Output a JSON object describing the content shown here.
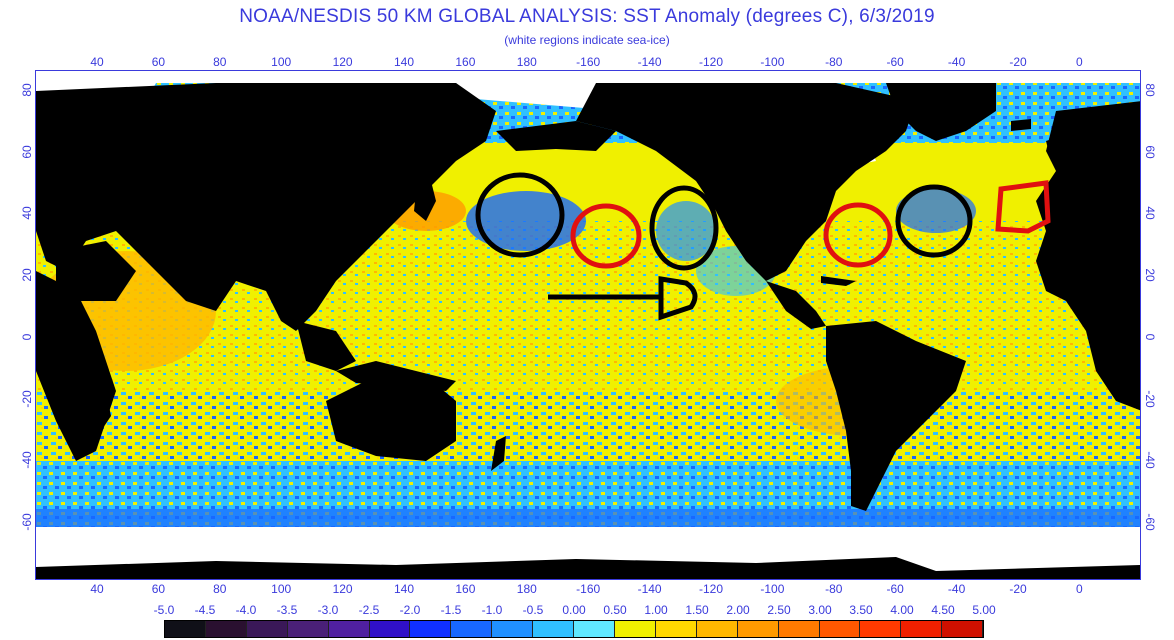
{
  "header": {
    "title": "NOAA/NESDIS 50 KM GLOBAL ANALYSIS: SST Anomaly (degrees C), 6/3/2019",
    "subtitle": "(white regions indicate sea-ice)"
  },
  "axes": {
    "lon_labels": [
      "40",
      "60",
      "80",
      "100",
      "120",
      "140",
      "160",
      "180",
      "-160",
      "-140",
      "-120",
      "-100",
      "-80",
      "-60",
      "-40",
      "-20",
      "0"
    ],
    "lat_labels": [
      "80",
      "60",
      "40",
      "20",
      "0",
      "-20",
      "-40",
      "-60"
    ]
  },
  "colorbar": {
    "labels": [
      "-5.0",
      "-4.5",
      "-4.0",
      "-3.5",
      "-3.0",
      "-2.5",
      "-2.0",
      "-1.5",
      "-1.0",
      "-0.5",
      "0.00",
      "0.50",
      "1.00",
      "1.50",
      "2.00",
      "2.50",
      "3.00",
      "3.50",
      "4.00",
      "4.50",
      "5.00"
    ],
    "colors": [
      "#101018",
      "#2a1030",
      "#3a1858",
      "#4a2078",
      "#5020a0",
      "#3010c8",
      "#1030ff",
      "#1868ff",
      "#2090ff",
      "#30c0ff",
      "#60e8ff",
      "#f0f000",
      "#ffd800",
      "#ffb800",
      "#ff9a00",
      "#ff7a00",
      "#ff5800",
      "#ff3a00",
      "#f02000",
      "#d01000"
    ]
  },
  "map": {
    "colors": {
      "land": "#000000",
      "ice": "#ffffff",
      "warm": "#ffd800",
      "neutral": "#f0f000",
      "cool": "#30c0ff",
      "cold": "#1060ff",
      "hot": "#ff8a00",
      "annotation_red": "#e01010",
      "annotation_black": "#000000"
    }
  }
}
